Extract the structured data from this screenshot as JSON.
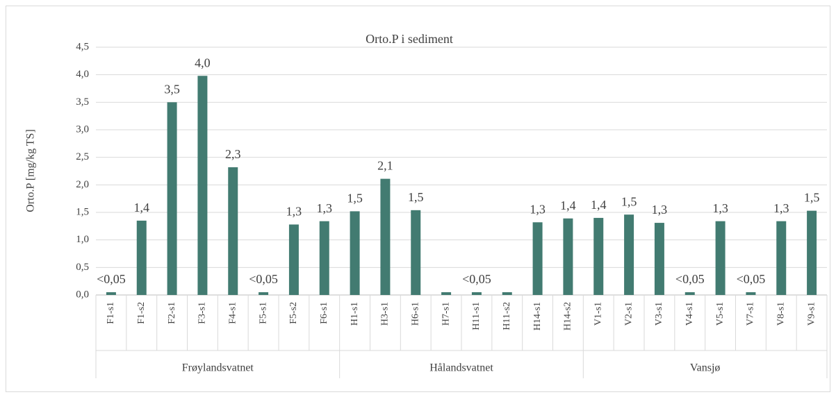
{
  "chart_data": {
    "type": "bar",
    "title": "Orto.P i sediment",
    "y_label": "Orto.P [mg/kg TS]",
    "color": "#427b71",
    "grid": true,
    "ylim": [
      0,
      4.5
    ],
    "yticks": [
      {
        "value": 0,
        "label": "0,0"
      },
      {
        "value": 0.5,
        "label": "0,5"
      },
      {
        "value": 1,
        "label": "1,0"
      },
      {
        "value": 1.5,
        "label": "1,5"
      },
      {
        "value": 2,
        "label": "2,0"
      },
      {
        "value": 2.5,
        "label": "2,5"
      },
      {
        "value": 3,
        "label": "3,0"
      },
      {
        "value": 3.5,
        "label": "3,5"
      },
      {
        "value": 4,
        "label": "4,0"
      },
      {
        "value": 4.5,
        "label": "4,5"
      }
    ],
    "groups": [
      {
        "name": "Frøylandsvatnet",
        "categories": [
          "F1-s1",
          "F1-s2",
          "F2-s1",
          "F3-s1",
          "F4-s1",
          "F5-s1",
          "F5-s2",
          "F6-s1"
        ],
        "values": [
          0.05,
          1.35,
          3.5,
          3.98,
          2.32,
          0.05,
          1.28,
          1.34
        ],
        "value_labels": [
          "<0,05",
          "1,4",
          "3,5",
          "4,0",
          "2,3",
          "<0,05",
          "1,3",
          "1,3"
        ]
      },
      {
        "name": "Hålandsvatnet",
        "categories": [
          "H1-s1",
          "H3-s1",
          "H6-s1",
          "H7-s1",
          "H11-s1",
          "H11-s2",
          "H14-s1",
          "H14-s2"
        ],
        "values": [
          1.52,
          2.11,
          1.54,
          0.05,
          0.05,
          0.05,
          1.32,
          1.39
        ],
        "value_labels": [
          "1,5",
          "2,1",
          "1,5",
          null,
          "<0,05",
          null,
          "1,3",
          "1,4"
        ]
      },
      {
        "name": "Vansjø",
        "categories": [
          "V1-s1",
          "V2-s1",
          "V3-s1",
          "V4-s1",
          "V5-s1",
          "V7-s1",
          "V8-s1",
          "V9-s1"
        ],
        "values": [
          1.4,
          1.46,
          1.31,
          0.05,
          1.34,
          0.05,
          1.34,
          1.53
        ],
        "value_labels": [
          "1,4",
          "1,5",
          "1,3",
          "<0,05",
          "1,3",
          "<0,05",
          "1,3",
          "1,5"
        ]
      }
    ]
  }
}
